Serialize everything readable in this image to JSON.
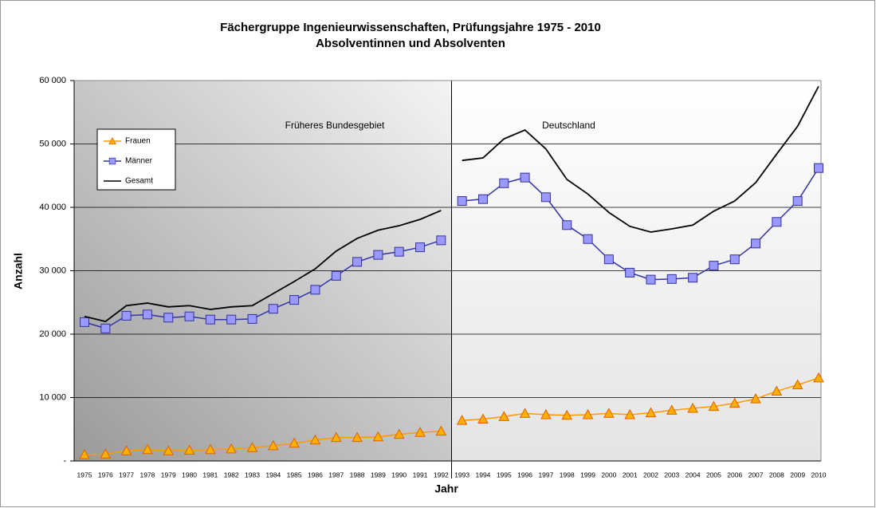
{
  "chart_data": {
    "type": "line",
    "title": "Fächergruppe Ingenieurwissenschaften, Prüfungsjahre 1975 - 2010",
    "subtitle": "Absolventinnen und Absolventen",
    "x_label": "Jahr",
    "y_label": "Anzahl",
    "categories": [
      "1975",
      "1976",
      "1977",
      "1978",
      "1979",
      "1980",
      "1981",
      "1982",
      "1983",
      "1984",
      "1985",
      "1986",
      "1987",
      "1988",
      "1989",
      "1990",
      "1991",
      "1992",
      "1993",
      "1994",
      "1995",
      "1996",
      "1997",
      "1998",
      "1999",
      "2000",
      "2001",
      "2002",
      "2003",
      "2004",
      "2005",
      "2006",
      "2007",
      "2008",
      "2009",
      "2010"
    ],
    "regions": [
      {
        "label": "Früheres Bundesgebiet",
        "from": "1975",
        "to": "1992"
      },
      {
        "label": "Deutschland",
        "from": "1993",
        "to": "2010"
      }
    ],
    "series": [
      {
        "name": "Frauen",
        "color": "#ff9900",
        "marker": "triangle",
        "values": [
          1000,
          1100,
          1600,
          1800,
          1600,
          1700,
          1800,
          1900,
          2100,
          2400,
          2800,
          3300,
          3700,
          3700,
          3800,
          4200,
          4500,
          4700,
          6400,
          6600,
          7000,
          7500,
          7300,
          7200,
          7300,
          7500,
          7300,
          7600,
          8000,
          8300,
          8600,
          9100,
          9800,
          11000,
          12000,
          13100
        ]
      },
      {
        "name": "Männer",
        "color": "#3333aa",
        "marker": "square",
        "values": [
          21900,
          20900,
          22900,
          23100,
          22600,
          22800,
          22300,
          22300,
          22400,
          24000,
          25400,
          27000,
          29200,
          31400,
          32500,
          33000,
          33700,
          34800,
          41000,
          41300,
          43800,
          44700,
          41600,
          37200,
          35000,
          31800,
          29700,
          28600,
          28700,
          28900,
          30800,
          31800,
          34300,
          37700,
          41000,
          46200
        ]
      },
      {
        "name": "Gesamt",
        "color": "#000000",
        "values": [
          22800,
          22000,
          24500,
          24900,
          24300,
          24500,
          23900,
          24300,
          24500,
          26400,
          28300,
          30300,
          33100,
          35100,
          36400,
          37100,
          38100,
          39500,
          47400,
          47800,
          50800,
          52200,
          49200,
          44400,
          42100,
          39200,
          37000,
          36100,
          36600,
          37200,
          39400,
          41000,
          43900,
          48400,
          52800,
          59100
        ]
      }
    ],
    "ylim": [
      0,
      60000
    ],
    "yticks": [
      {
        "value": 0,
        "label": "-"
      },
      {
        "value": 10000,
        "label": "10 000"
      },
      {
        "value": 20000,
        "label": "20 000"
      },
      {
        "value": 30000,
        "label": "30 000"
      },
      {
        "value": 40000,
        "label": "40 000"
      },
      {
        "value": 50000,
        "label": "50 000"
      },
      {
        "value": 60000,
        "label": "60 000"
      }
    ],
    "grid": true,
    "legend": "upper left"
  }
}
